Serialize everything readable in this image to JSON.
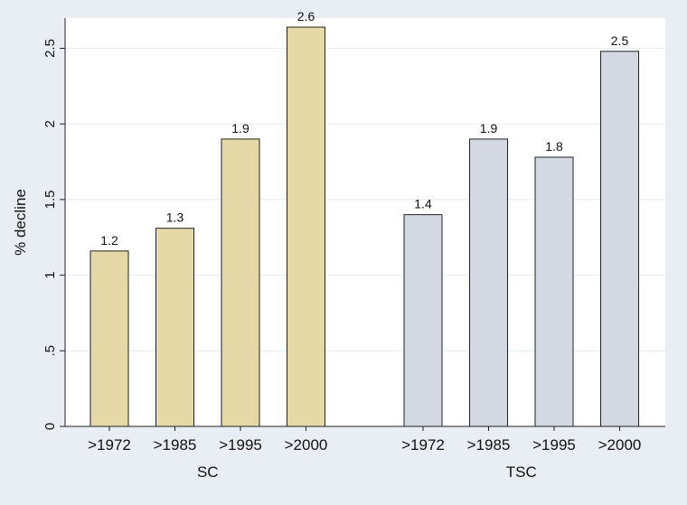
{
  "chart_data": {
    "type": "bar",
    "ylabel": "% decline",
    "ylim": [
      0,
      2.7
    ],
    "yticks": [
      0,
      0.5,
      1,
      1.5,
      2,
      2.5
    ],
    "ytick_labels": [
      "0",
      ".5",
      "1",
      "1.5",
      "2",
      "2.5"
    ],
    "grid": true,
    "colors": {
      "SC": "#e6d9a8",
      "TSC": "#d3d8e3",
      "background": "#e8eef4",
      "plot": "#ffffff",
      "grid": "#e8eef4"
    },
    "groups": [
      {
        "name": "SC",
        "categories": [
          ">1972",
          ">1985",
          ">1995",
          ">2000"
        ],
        "values": [
          1.16,
          1.31,
          1.9,
          2.64
        ],
        "labels": [
          "1.2",
          "1.3",
          "1.9",
          "2.6"
        ]
      },
      {
        "name": "TSC",
        "categories": [
          ">1972",
          ">1985",
          ">1995",
          ">2000"
        ],
        "values": [
          1.4,
          1.9,
          1.78,
          2.48
        ],
        "labels": [
          "1.4",
          "1.9",
          "1.8",
          "2.5"
        ]
      }
    ]
  }
}
